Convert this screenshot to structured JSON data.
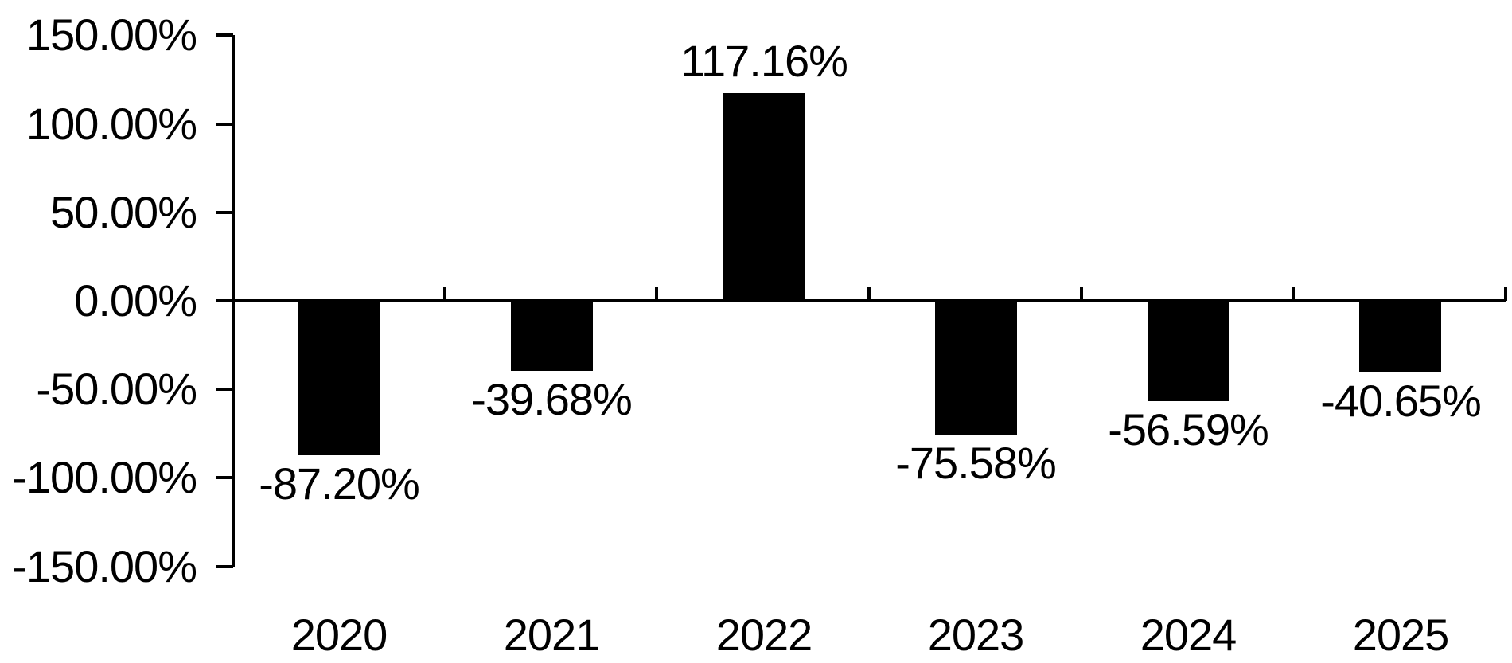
{
  "chart_data": {
    "type": "bar",
    "title": "",
    "xlabel": "",
    "ylabel": "",
    "categories": [
      "2020",
      "2021",
      "2022",
      "2023",
      "2024",
      "2025"
    ],
    "values": [
      -87.2,
      -39.68,
      117.16,
      -75.58,
      -56.59,
      -40.65
    ],
    "value_labels": [
      "-87.20%",
      "-39.68%",
      "117.16%",
      "-75.58%",
      "-56.59%",
      "-40.65%"
    ],
    "y_axis": {
      "min": -150,
      "max": 150,
      "step": 50,
      "tick_labels": [
        "150.00%",
        "100.00%",
        "50.00%",
        "0.00%",
        "-50.00%",
        "-100.00%",
        "-150.00%"
      ]
    },
    "grid": false,
    "legend": "none",
    "layout_hints": {
      "bar_orientation": "vertical",
      "value_label_position": "outside-end",
      "x_ticks": "category-boundaries, drawn upward from zero line",
      "y_ticks": "outside-left"
    },
    "colors": {
      "bar": "#000000",
      "axis": "#000000",
      "text": "#000000",
      "background": "#ffffff"
    }
  }
}
